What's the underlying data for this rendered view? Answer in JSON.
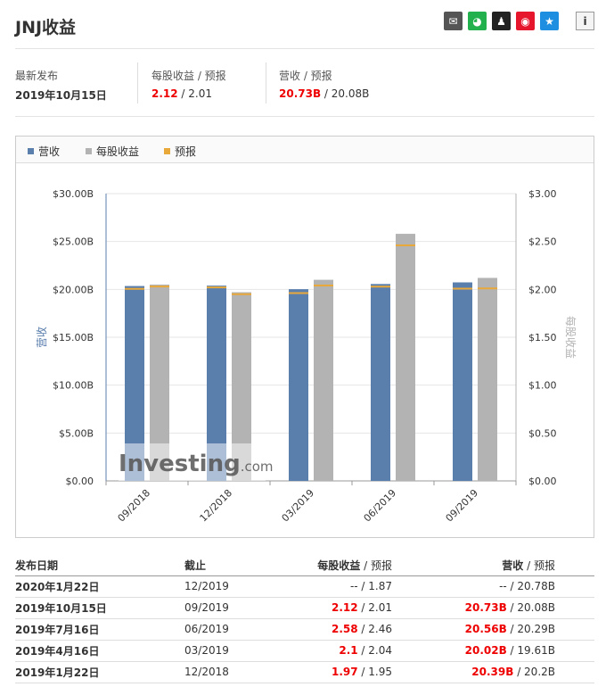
{
  "title": "JNJ收益",
  "share_icons": [
    "mail-icon",
    "wechat-icon",
    "qq-icon",
    "weibo-icon",
    "qzone-icon"
  ],
  "info_icon": "i",
  "summary": {
    "latest_label": "最新发布",
    "latest_date": "2019年10月15日",
    "eps_label": "每股收益 / 预报",
    "eps_actual": "2.12",
    "eps_forecast": "2.01",
    "rev_label": "营收 / 预报",
    "rev_actual": "20.73B",
    "rev_forecast": "20.08B",
    "sep": " / "
  },
  "legend": {
    "revenue": "营收",
    "eps": "每股收益",
    "forecast": "预报"
  },
  "colors": {
    "revenue": "#5b7fad",
    "eps": "#b3b3b3",
    "forecast": "#e8a83a",
    "red": "#e00000"
  },
  "watermark": "Investing.com",
  "chart_data": {
    "type": "bar",
    "categories": [
      "09/2018",
      "12/2018",
      "03/2019",
      "06/2019",
      "09/2019"
    ],
    "series": [
      {
        "name": "营收",
        "axis": "left",
        "values": [
          20.35,
          20.39,
          20.02,
          20.56,
          20.73
        ]
      },
      {
        "name": "每股收益",
        "axis": "right",
        "values": [
          2.05,
          1.97,
          2.1,
          2.58,
          2.12
        ]
      },
      {
        "name": "预报",
        "axis": "both",
        "revenue_values": [
          20.05,
          20.2,
          19.61,
          20.29,
          20.08
        ],
        "eps_values": [
          2.03,
          1.95,
          2.04,
          2.46,
          2.01
        ]
      }
    ],
    "ylabel_left": "营收",
    "ylabel_right": "每股收益",
    "ylim_left": [
      0,
      30
    ],
    "ylim_right": [
      0,
      3
    ],
    "left_ticks": [
      "$0.00",
      "$5.00B",
      "$10.00B",
      "$15.00B",
      "$20.00B",
      "$25.00B",
      "$30.00B"
    ],
    "right_ticks": [
      "$0.00",
      "$0.50",
      "$1.00",
      "$1.50",
      "$2.00",
      "$2.50",
      "$3.00"
    ],
    "grid": true,
    "legend_position": "top-left"
  },
  "table": {
    "headers": [
      "发布日期",
      "截止",
      "每股收益",
      "预报",
      "营收",
      "预报"
    ],
    "sep": " / ",
    "rows": [
      {
        "date": "2020年1月22日",
        "period": "12/2019",
        "eps": "--",
        "eps_fc": "1.87",
        "rev": "--",
        "rev_fc": "20.78B",
        "red": false
      },
      {
        "date": "2019年10月15日",
        "period": "09/2019",
        "eps": "2.12",
        "eps_fc": "2.01",
        "rev": "20.73B",
        "rev_fc": "20.08B",
        "red": true
      },
      {
        "date": "2019年7月16日",
        "period": "06/2019",
        "eps": "2.58",
        "eps_fc": "2.46",
        "rev": "20.56B",
        "rev_fc": "20.29B",
        "red": true
      },
      {
        "date": "2019年4月16日",
        "period": "03/2019",
        "eps": "2.1",
        "eps_fc": "2.04",
        "rev": "20.02B",
        "rev_fc": "19.61B",
        "red": true
      },
      {
        "date": "2019年1月22日",
        "period": "12/2018",
        "eps": "1.97",
        "eps_fc": "1.95",
        "rev": "20.39B",
        "rev_fc": "20.2B",
        "red": true
      }
    ]
  }
}
